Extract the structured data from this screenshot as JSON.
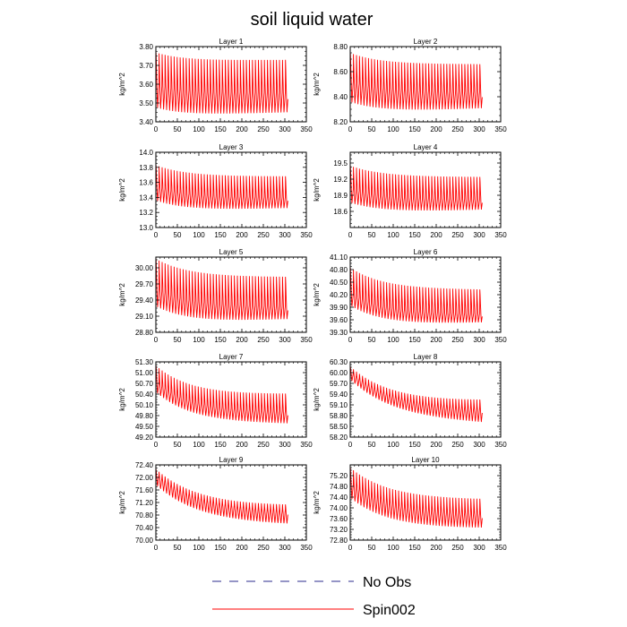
{
  "figure": {
    "title": "soil liquid water"
  },
  "legend": {
    "items": [
      {
        "label": "No Obs",
        "color": "#2b2b8c",
        "dash": "dashed"
      },
      {
        "label": "Spin002",
        "color": "#ff0000",
        "dash": "solid"
      }
    ]
  },
  "chart_data": [
    {
      "type": "line",
      "title": "Layer 1",
      "ylabel": "kg/m^2",
      "xlim": [
        0,
        350
      ],
      "ylim": [
        3.4,
        3.8
      ],
      "xticks": [
        "0",
        "50",
        "100",
        "150",
        "200",
        "250",
        "300",
        "350"
      ],
      "yticks": [
        "3.40",
        "3.50",
        "3.60",
        "3.70",
        "3.80"
      ],
      "series": [
        {
          "x_range": [
            0,
            307
          ],
          "mean_start": 3.6,
          "mean_end": 3.555,
          "decay": 60,
          "amp_up_start": 0.17,
          "amp_up_end": 0.175,
          "amp_down_start": 0.13,
          "amp_down_end": 0.11,
          "period": 7
        }
      ]
    },
    {
      "type": "line",
      "title": "Layer 2",
      "ylabel": "kg/m^2",
      "xlim": [
        0,
        350
      ],
      "ylim": [
        8.2,
        8.8
      ],
      "xticks": [
        "0",
        "50",
        "100",
        "150",
        "200",
        "250",
        "300",
        "350"
      ],
      "yticks": [
        "8.20",
        "8.40",
        "8.60",
        "8.80"
      ],
      "series": [
        {
          "x_range": [
            0,
            307
          ],
          "mean_start": 8.53,
          "mean_end": 8.44,
          "decay": 70,
          "amp_up_start": 0.22,
          "amp_up_end": 0.22,
          "amp_down_start": 0.18,
          "amp_down_end": 0.14,
          "period": 7
        }
      ]
    },
    {
      "type": "line",
      "title": "Layer 3",
      "ylabel": "kg/m^2",
      "xlim": [
        0,
        350
      ],
      "ylim": [
        13.0,
        14.0
      ],
      "xticks": [
        "0",
        "50",
        "100",
        "150",
        "200",
        "250",
        "300",
        "350"
      ],
      "yticks": [
        "13.0",
        "13.2",
        "13.4",
        "13.6",
        "13.8",
        "14.0"
      ],
      "series": [
        {
          "x_range": [
            0,
            307
          ],
          "mean_start": 13.55,
          "mean_end": 13.4,
          "decay": 70,
          "amp_up_start": 0.28,
          "amp_up_end": 0.28,
          "amp_down_start": 0.2,
          "amp_down_end": 0.15,
          "period": 7
        }
      ]
    },
    {
      "type": "line",
      "title": "Layer 4",
      "ylabel": "kg/m^2",
      "xlim": [
        0,
        350
      ],
      "ylim": [
        18.3,
        19.7
      ],
      "xticks": [
        "0",
        "50",
        "100",
        "150",
        "200",
        "250",
        "300",
        "350"
      ],
      "yticks": [
        "18.6",
        "18.9",
        "19.2",
        "19.5"
      ],
      "series": [
        {
          "x_range": [
            0,
            307
          ],
          "mean_start": 19.03,
          "mean_end": 18.82,
          "decay": 75,
          "amp_up_start": 0.42,
          "amp_up_end": 0.42,
          "amp_down_start": 0.28,
          "amp_down_end": 0.2,
          "period": 7
        }
      ]
    },
    {
      "type": "line",
      "title": "Layer 5",
      "ylabel": "kg/m^2",
      "xlim": [
        0,
        350
      ],
      "ylim": [
        28.8,
        30.2
      ],
      "xticks": [
        "0",
        "50",
        "100",
        "150",
        "200",
        "250",
        "300",
        "350"
      ],
      "yticks": [
        "28.80",
        "29.10",
        "29.40",
        "29.70",
        "30.00"
      ],
      "series": [
        {
          "x_range": [
            0,
            307
          ],
          "mean_start": 29.62,
          "mean_end": 29.28,
          "decay": 75,
          "amp_up_start": 0.55,
          "amp_up_end": 0.55,
          "amp_down_start": 0.35,
          "amp_down_end": 0.25,
          "period": 7
        }
      ]
    },
    {
      "type": "line",
      "title": "Layer 6",
      "ylabel": "kg/m^2",
      "xlim": [
        0,
        350
      ],
      "ylim": [
        39.3,
        41.1
      ],
      "xticks": [
        "0",
        "50",
        "100",
        "150",
        "200",
        "250",
        "300",
        "350"
      ],
      "yticks": [
        "39.30",
        "39.60",
        "39.90",
        "40.20",
        "40.50",
        "40.80",
        "41.10"
      ],
      "series": [
        {
          "x_range": [
            0,
            307
          ],
          "mean_start": 40.25,
          "mean_end": 39.74,
          "decay": 75,
          "amp_up_start": 0.6,
          "amp_up_end": 0.58,
          "amp_down_start": 0.32,
          "amp_down_end": 0.22,
          "period": 7
        }
      ]
    },
    {
      "type": "line",
      "title": "Layer 7",
      "ylabel": "kg/m^2",
      "xlim": [
        0,
        350
      ],
      "ylim": [
        49.2,
        51.3
      ],
      "xticks": [
        "0",
        "50",
        "100",
        "150",
        "200",
        "250",
        "300",
        "350"
      ],
      "yticks": [
        "49.20",
        "49.50",
        "49.80",
        "50.10",
        "50.40",
        "50.70",
        "51.00",
        "51.30"
      ],
      "series": [
        {
          "x_range": [
            0,
            307
          ],
          "mean_start": 50.75,
          "mean_end": 49.9,
          "decay": 80,
          "amp_up_start": 0.45,
          "amp_up_end": 0.5,
          "amp_down_start": 0.3,
          "amp_down_end": 0.35,
          "period": 7
        }
      ]
    },
    {
      "type": "line",
      "title": "Layer 8",
      "ylabel": "kg/m^2",
      "xlim": [
        0,
        350
      ],
      "ylim": [
        58.2,
        60.3
      ],
      "xticks": [
        "0",
        "50",
        "100",
        "150",
        "200",
        "250",
        "300",
        "350"
      ],
      "yticks": [
        "58.20",
        "58.50",
        "58.80",
        "59.10",
        "59.40",
        "59.70",
        "60.00",
        "60.30"
      ],
      "series": [
        {
          "x_range": [
            0,
            307
          ],
          "mean_start": 60.05,
          "mean_end": 58.95,
          "decay": 100,
          "amp_up_start": 0.12,
          "amp_up_end": 0.25,
          "amp_down_start": 0.25,
          "amp_down_end": 0.4,
          "period": 7
        }
      ]
    },
    {
      "type": "line",
      "title": "Layer 9",
      "ylabel": "kg/m^2",
      "xlim": [
        0,
        350
      ],
      "ylim": [
        70.0,
        72.4
      ],
      "xticks": [
        "0",
        "50",
        "100",
        "150",
        "200",
        "250",
        "300",
        "350"
      ],
      "yticks": [
        "70.00",
        "70.40",
        "70.80",
        "71.20",
        "71.60",
        "72.00",
        "72.40"
      ],
      "series": [
        {
          "x_range": [
            0,
            307
          ],
          "mean_start": 72.15,
          "mean_end": 70.9,
          "decay": 100,
          "amp_up_start": 0.12,
          "amp_up_end": 0.18,
          "amp_down_start": 0.4,
          "amp_down_end": 0.45,
          "period": 7
        }
      ]
    },
    {
      "type": "line",
      "title": "Layer 10",
      "ylabel": "kg/m^2",
      "xlim": [
        0,
        350
      ],
      "ylim": [
        72.8,
        75.6
      ],
      "xticks": [
        "0",
        "50",
        "100",
        "150",
        "200",
        "250",
        "300",
        "350"
      ],
      "yticks": [
        "72.80",
        "73.20",
        "73.60",
        "74.00",
        "74.40",
        "74.80",
        "75.20"
      ],
      "series": [
        {
          "x_range": [
            0,
            307
          ],
          "mean_start": 74.95,
          "mean_end": 73.75,
          "decay": 90,
          "amp_up_start": 0.55,
          "amp_up_end": 0.55,
          "amp_down_start": 0.6,
          "amp_down_end": 0.55,
          "period": 7
        }
      ]
    }
  ]
}
